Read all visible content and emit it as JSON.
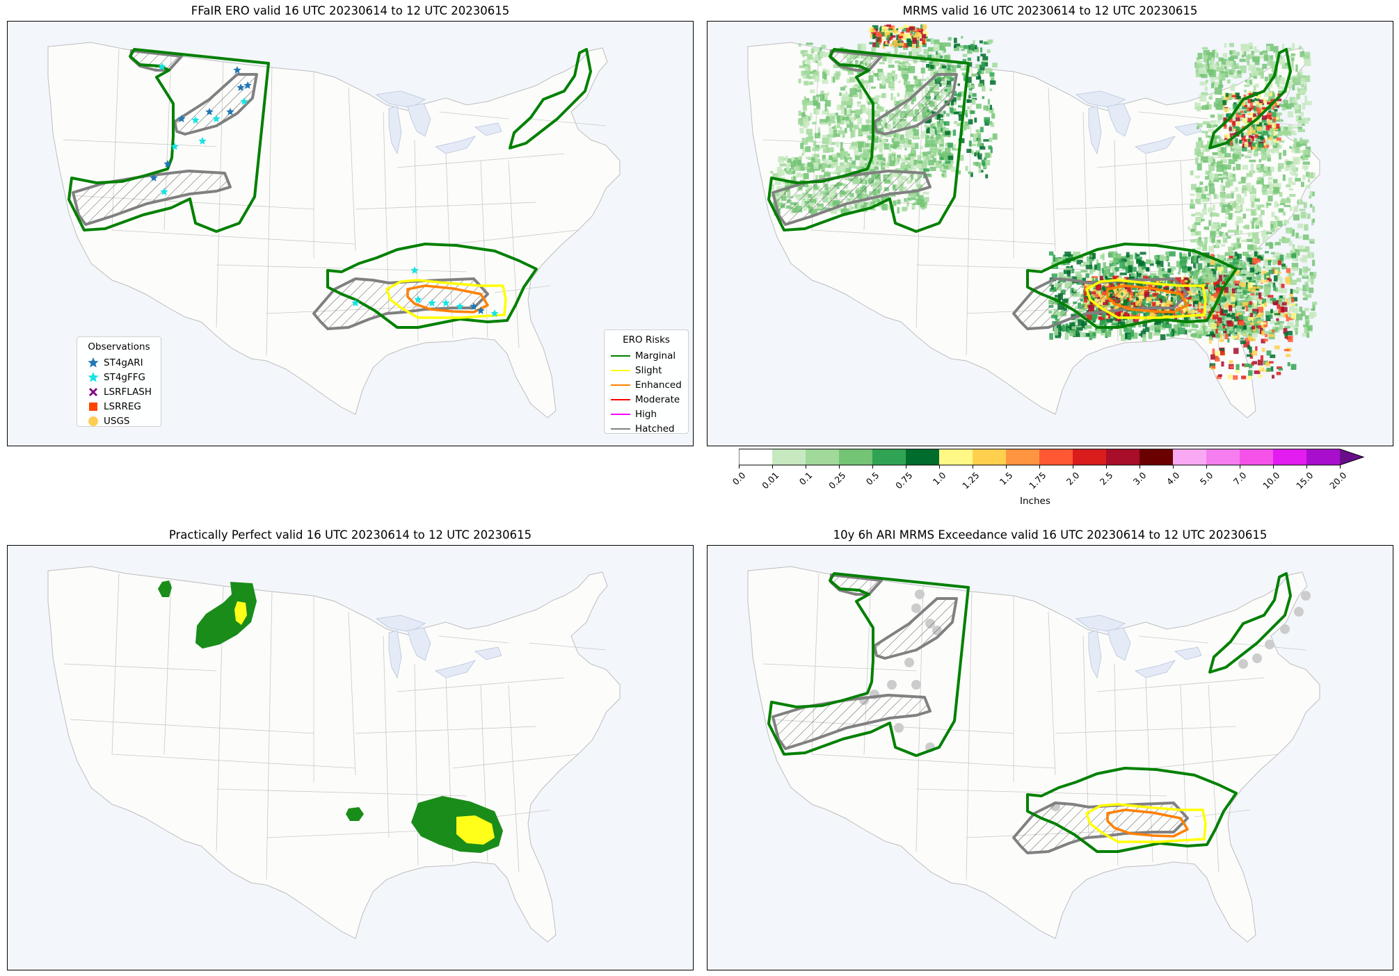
{
  "panels": {
    "tl": {
      "title": "FFaIR ERO valid 16 UTC 20230614 to 12 UTC 20230615"
    },
    "tr": {
      "title": "MRMS valid 16 UTC 20230614 to 12 UTC 20230615"
    },
    "bl": {
      "title": "Practically Perfect valid 16 UTC 20230614 to 12 UTC 20230615"
    },
    "br": {
      "title": "10y 6h ARI MRMS Exceedance valid 16 UTC 20230614 to 12 UTC 20230615"
    }
  },
  "observations_legend": {
    "title": "Observations",
    "items": [
      {
        "label": "ST4gARI",
        "symbol": "star",
        "color": "#1f77b4"
      },
      {
        "label": "ST4gFFG",
        "symbol": "star",
        "color": "#17e3e3"
      },
      {
        "label": "LSRFLASH",
        "symbol": "x",
        "color": "#800080"
      },
      {
        "label": "LSRREG",
        "symbol": "square",
        "color": "#ff4500"
      },
      {
        "label": "USGS",
        "symbol": "circle",
        "color": "#ffcc55"
      }
    ]
  },
  "risk_legend": {
    "title": "ERO Risks",
    "items": [
      {
        "label": "Marginal",
        "color": "#008000"
      },
      {
        "label": "Slight",
        "color": "#ffff00"
      },
      {
        "label": "Enhanced",
        "color": "#ff8000"
      },
      {
        "label": "Moderate",
        "color": "#ff0000"
      },
      {
        "label": "High",
        "color": "#ff00ff"
      },
      {
        "label": "Hatched",
        "color": "#808080"
      }
    ]
  },
  "colorbar": {
    "label": "Inches",
    "ticks": [
      "0.0",
      "0.01",
      "0.1",
      "0.25",
      "0.5",
      "0.75",
      "1.0",
      "1.25",
      "1.5",
      "1.75",
      "2.0",
      "2.5",
      "3.0",
      "4.0",
      "5.0",
      "7.0",
      "10.0",
      "15.0",
      "20.0"
    ],
    "colors": [
      "#ffffff",
      "#c7e9c0",
      "#a1d99b",
      "#74c476",
      "#31a354",
      "#006d2c",
      "#fff885",
      "#ffd04d",
      "#ff9540",
      "#ff5833",
      "#d91c1c",
      "#a80d2a",
      "#6b0000",
      "#f9a9f3",
      "#f57df0",
      "#f552ea",
      "#e31cf2",
      "#a80fcc"
    ],
    "extend_color": "#6a0d8a"
  },
  "colors": {
    "marginal": "#008000",
    "slight": "#ffff00",
    "enhanced": "#ff8000",
    "hatched": "#808080",
    "pp_outer": "#1a8c1a",
    "pp_inner": "#ffff1a",
    "land": "#fcfcfb",
    "water": "#f3f6fb",
    "exceed": "#cccccc"
  }
}
